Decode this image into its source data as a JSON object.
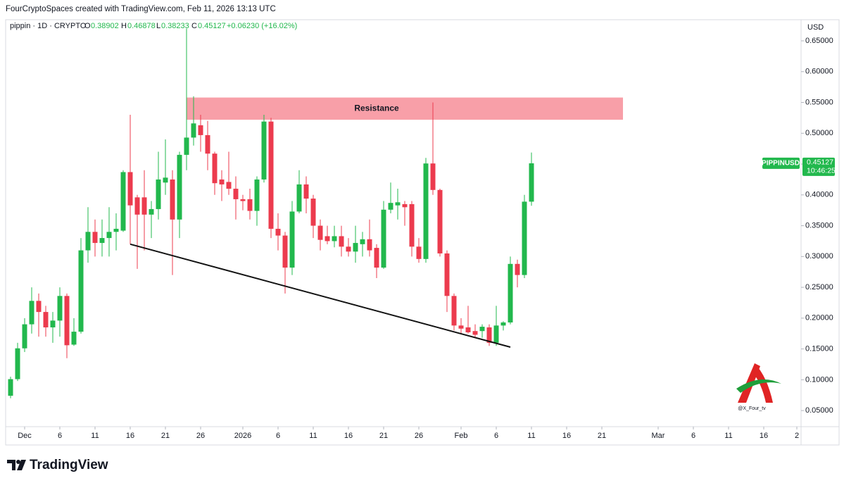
{
  "chart_data": {
    "type": "candlestick",
    "title": "FourCryptoSpaces created with TradingView.com, Feb 11, 2026 13:13 UTC",
    "symbol": "pippin · 1D · CRYPTO",
    "ohlc_labels": [
      "O",
      "H",
      "L",
      "C"
    ],
    "change": "+0.06230 (+16.02%)",
    "currency": "USD",
    "ticker": "PIPPINUSD",
    "countdown": "10:46:25",
    "brand": "TradingView",
    "watermark": "@X_Four_tv",
    "up_color": "#22b84d",
    "down_color": "#ec3b4e",
    "x": [
      -2,
      -1,
      0,
      1,
      2,
      3,
      4,
      5,
      6,
      7,
      8,
      9,
      10,
      11,
      12,
      13,
      14,
      15,
      16,
      17,
      18,
      19,
      20,
      21,
      22,
      23,
      24,
      25,
      26,
      27,
      28,
      29,
      30,
      31,
      32,
      33,
      34,
      35,
      36,
      37,
      38,
      39,
      40,
      41,
      42,
      43,
      44,
      45,
      46,
      47,
      48,
      49,
      50,
      51,
      52,
      53,
      54,
      55,
      56,
      57,
      58,
      59,
      60,
      61,
      62,
      63,
      64,
      65,
      66,
      67,
      68,
      69,
      70,
      71,
      72
    ],
    "open": [
      0.074,
      0.101,
      0.151,
      0.19,
      0.228,
      0.21,
      0.185,
      0.196,
      0.236,
      0.157,
      0.178,
      0.31,
      0.34,
      0.322,
      0.33,
      0.34,
      0.342,
      0.437,
      0.396,
      0.396,
      0.368,
      0.377,
      0.42,
      0.425,
      0.36,
      0.465,
      0.493,
      0.513,
      0.497,
      0.467,
      0.425,
      0.421,
      0.41,
      0.393,
      0.393,
      0.374,
      0.425,
      0.519,
      0.345,
      0.334,
      0.282,
      0.373,
      0.417,
      0.394,
      0.35,
      0.333,
      0.325,
      0.333,
      0.316,
      0.308,
      0.32,
      0.328,
      0.314,
      0.282,
      0.376,
      0.383,
      0.385,
      0.385,
      0.316,
      0.296,
      0.451,
      0.408,
      0.305,
      0.236,
      0.188,
      0.185,
      0.179,
      0.179,
      0.185,
      0.16,
      0.188,
      0.193,
      0.288,
      0.27,
      0.38902
    ],
    "high": [
      0.105,
      0.16,
      0.2,
      0.25,
      0.24,
      0.22,
      0.21,
      0.25,
      0.24,
      0.2,
      0.33,
      0.38,
      0.36,
      0.36,
      0.38,
      0.37,
      0.44,
      0.53,
      0.4,
      0.44,
      0.39,
      0.47,
      0.49,
      0.44,
      0.47,
      0.67,
      0.56,
      0.53,
      0.52,
      0.47,
      0.44,
      0.47,
      0.43,
      0.4,
      0.41,
      0.43,
      0.53,
      0.525,
      0.37,
      0.34,
      0.39,
      0.44,
      0.43,
      0.4,
      0.36,
      0.35,
      0.35,
      0.35,
      0.33,
      0.35,
      0.34,
      0.36,
      0.32,
      0.39,
      0.42,
      0.41,
      0.39,
      0.39,
      0.33,
      0.46,
      0.55,
      0.41,
      0.31,
      0.24,
      0.2,
      0.22,
      0.19,
      0.19,
      0.19,
      0.22,
      0.195,
      0.3,
      0.295,
      0.4,
      0.46878
    ],
    "low": [
      0.07,
      0.098,
      0.145,
      0.175,
      0.17,
      0.17,
      0.16,
      0.17,
      0.135,
      0.155,
      0.175,
      0.29,
      0.3,
      0.3,
      0.3,
      0.31,
      0.34,
      0.32,
      0.28,
      0.31,
      0.33,
      0.36,
      0.4,
      0.27,
      0.33,
      0.44,
      0.48,
      0.47,
      0.44,
      0.4,
      0.39,
      0.4,
      0.36,
      0.375,
      0.36,
      0.35,
      0.42,
      0.33,
      0.31,
      0.24,
      0.27,
      0.37,
      0.37,
      0.33,
      0.31,
      0.32,
      0.315,
      0.3,
      0.3,
      0.29,
      0.3,
      0.3,
      0.265,
      0.28,
      0.37,
      0.36,
      0.35,
      0.3,
      0.29,
      0.29,
      0.4,
      0.3,
      0.21,
      0.18,
      0.175,
      0.175,
      0.168,
      0.168,
      0.155,
      0.155,
      0.18,
      0.19,
      0.25,
      0.265,
      0.38233
    ],
    "close": [
      0.101,
      0.151,
      0.19,
      0.228,
      0.21,
      0.185,
      0.196,
      0.236,
      0.156,
      0.178,
      0.31,
      0.34,
      0.322,
      0.33,
      0.34,
      0.345,
      0.437,
      0.383,
      0.368,
      0.368,
      0.377,
      0.425,
      0.428,
      0.36,
      0.465,
      0.493,
      0.516,
      0.497,
      0.467,
      0.419,
      0.417,
      0.41,
      0.393,
      0.39,
      0.374,
      0.425,
      0.519,
      0.345,
      0.334,
      0.282,
      0.373,
      0.417,
      0.394,
      0.35,
      0.327,
      0.325,
      0.333,
      0.316,
      0.308,
      0.322,
      0.328,
      0.31,
      0.282,
      0.376,
      0.387,
      0.388,
      0.38,
      0.316,
      0.296,
      0.451,
      0.408,
      0.305,
      0.236,
      0.188,
      0.183,
      0.177,
      0.173,
      0.186,
      0.16,
      0.188,
      0.193,
      0.288,
      0.27,
      0.389,
      0.45127
    ],
    "resistance": {
      "label": "Resistance",
      "x": [
        23,
        85
      ],
      "y": [
        0.522,
        0.558
      ],
      "color": "#f7959e"
    },
    "trendline": {
      "x": [
        15,
        69
      ],
      "y": [
        0.32,
        0.153
      ],
      "color": "#111111"
    },
    "xlim": [
      -2.7,
      110
    ],
    "ylim": [
      0.025,
      0.682
    ],
    "xticks": [
      {
        "value": 0,
        "label": "Dec"
      },
      {
        "value": 5,
        "label": "6"
      },
      {
        "value": 10,
        "label": "11"
      },
      {
        "value": 15,
        "label": "16"
      },
      {
        "value": 20,
        "label": "21"
      },
      {
        "value": 25,
        "label": "26"
      },
      {
        "value": 31,
        "label": "2026"
      },
      {
        "value": 36,
        "label": "6"
      },
      {
        "value": 41,
        "label": "11"
      },
      {
        "value": 46,
        "label": "16"
      },
      {
        "value": 51,
        "label": "21"
      },
      {
        "value": 56,
        "label": "26"
      },
      {
        "value": 62,
        "label": "Feb"
      },
      {
        "value": 67,
        "label": "6"
      },
      {
        "value": 72,
        "label": "11"
      },
      {
        "value": 77,
        "label": "16"
      },
      {
        "value": 82,
        "label": "21"
      },
      {
        "value": 90,
        "label": "Mar"
      },
      {
        "value": 95,
        "label": "6"
      },
      {
        "value": 100,
        "label": "11"
      },
      {
        "value": 105,
        "label": "16"
      },
      {
        "value": 109.7,
        "label": "2"
      }
    ],
    "yticks": [
      {
        "value": 0.05,
        "label": "0.05000"
      },
      {
        "value": 0.1,
        "label": "0.10000"
      },
      {
        "value": 0.15,
        "label": "0.15000"
      },
      {
        "value": 0.2,
        "label": "0.20000"
      },
      {
        "value": 0.25,
        "label": "0.25000"
      },
      {
        "value": 0.3,
        "label": "0.30000"
      },
      {
        "value": 0.35,
        "label": "0.35000"
      },
      {
        "value": 0.4,
        "label": "0.40000"
      },
      {
        "value": 0.45,
        "label": "0.45000"
      },
      {
        "value": 0.5,
        "label": "0.50000"
      },
      {
        "value": 0.55,
        "label": "0.55000"
      },
      {
        "value": 0.6,
        "label": "0.60000"
      },
      {
        "value": 0.65,
        "label": "0.65000"
      }
    ]
  }
}
